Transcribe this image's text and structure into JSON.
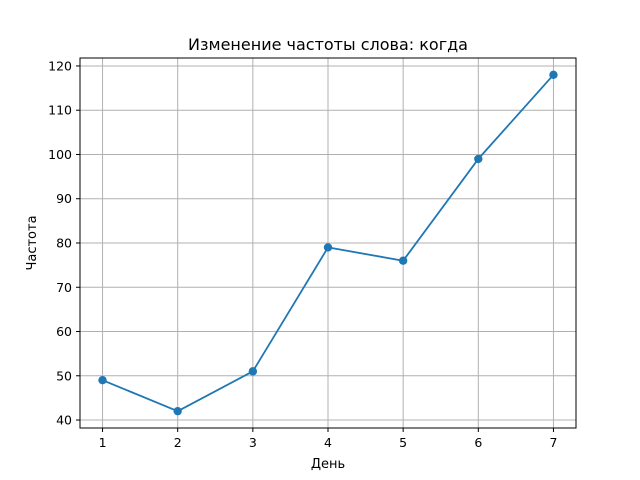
{
  "chart_data": {
    "type": "line",
    "title": "Изменение частоты слова: когда",
    "xlabel": "День",
    "ylabel": "Частота",
    "x": [
      1,
      2,
      3,
      4,
      5,
      6,
      7
    ],
    "series": [
      {
        "values": [
          49,
          42,
          51,
          79,
          76,
          99,
          118
        ],
        "color": "#1f77b4",
        "marker": "circle"
      }
    ],
    "x_ticks": [
      1,
      2,
      3,
      4,
      5,
      6,
      7
    ],
    "y_ticks": [
      40,
      50,
      60,
      70,
      80,
      90,
      100,
      110,
      120
    ],
    "xlim": [
      0.7,
      7.3
    ],
    "ylim": [
      38.2,
      121.8
    ],
    "grid": true
  }
}
